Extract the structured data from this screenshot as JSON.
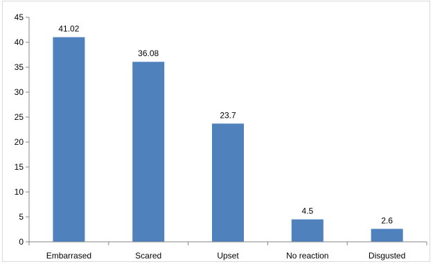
{
  "chart_data": {
    "type": "bar",
    "categories": [
      "Embarrased",
      "Scared",
      "Upset",
      "No reaction",
      "Disgusted"
    ],
    "values": [
      41.02,
      36.08,
      23.7,
      4.5,
      2.6
    ],
    "data_labels": [
      "41.02",
      "36.08",
      "23.7",
      "4.5",
      "2.6"
    ],
    "y_ticks": [
      "0",
      "5",
      "10",
      "15",
      "20",
      "25",
      "30",
      "35",
      "40",
      "45"
    ],
    "ylim": [
      0,
      45
    ],
    "title": "",
    "xlabel": "",
    "ylabel": "",
    "grid": false,
    "legend": "none",
    "bar_color": "#4f81bd",
    "axis_color": "#868686"
  }
}
